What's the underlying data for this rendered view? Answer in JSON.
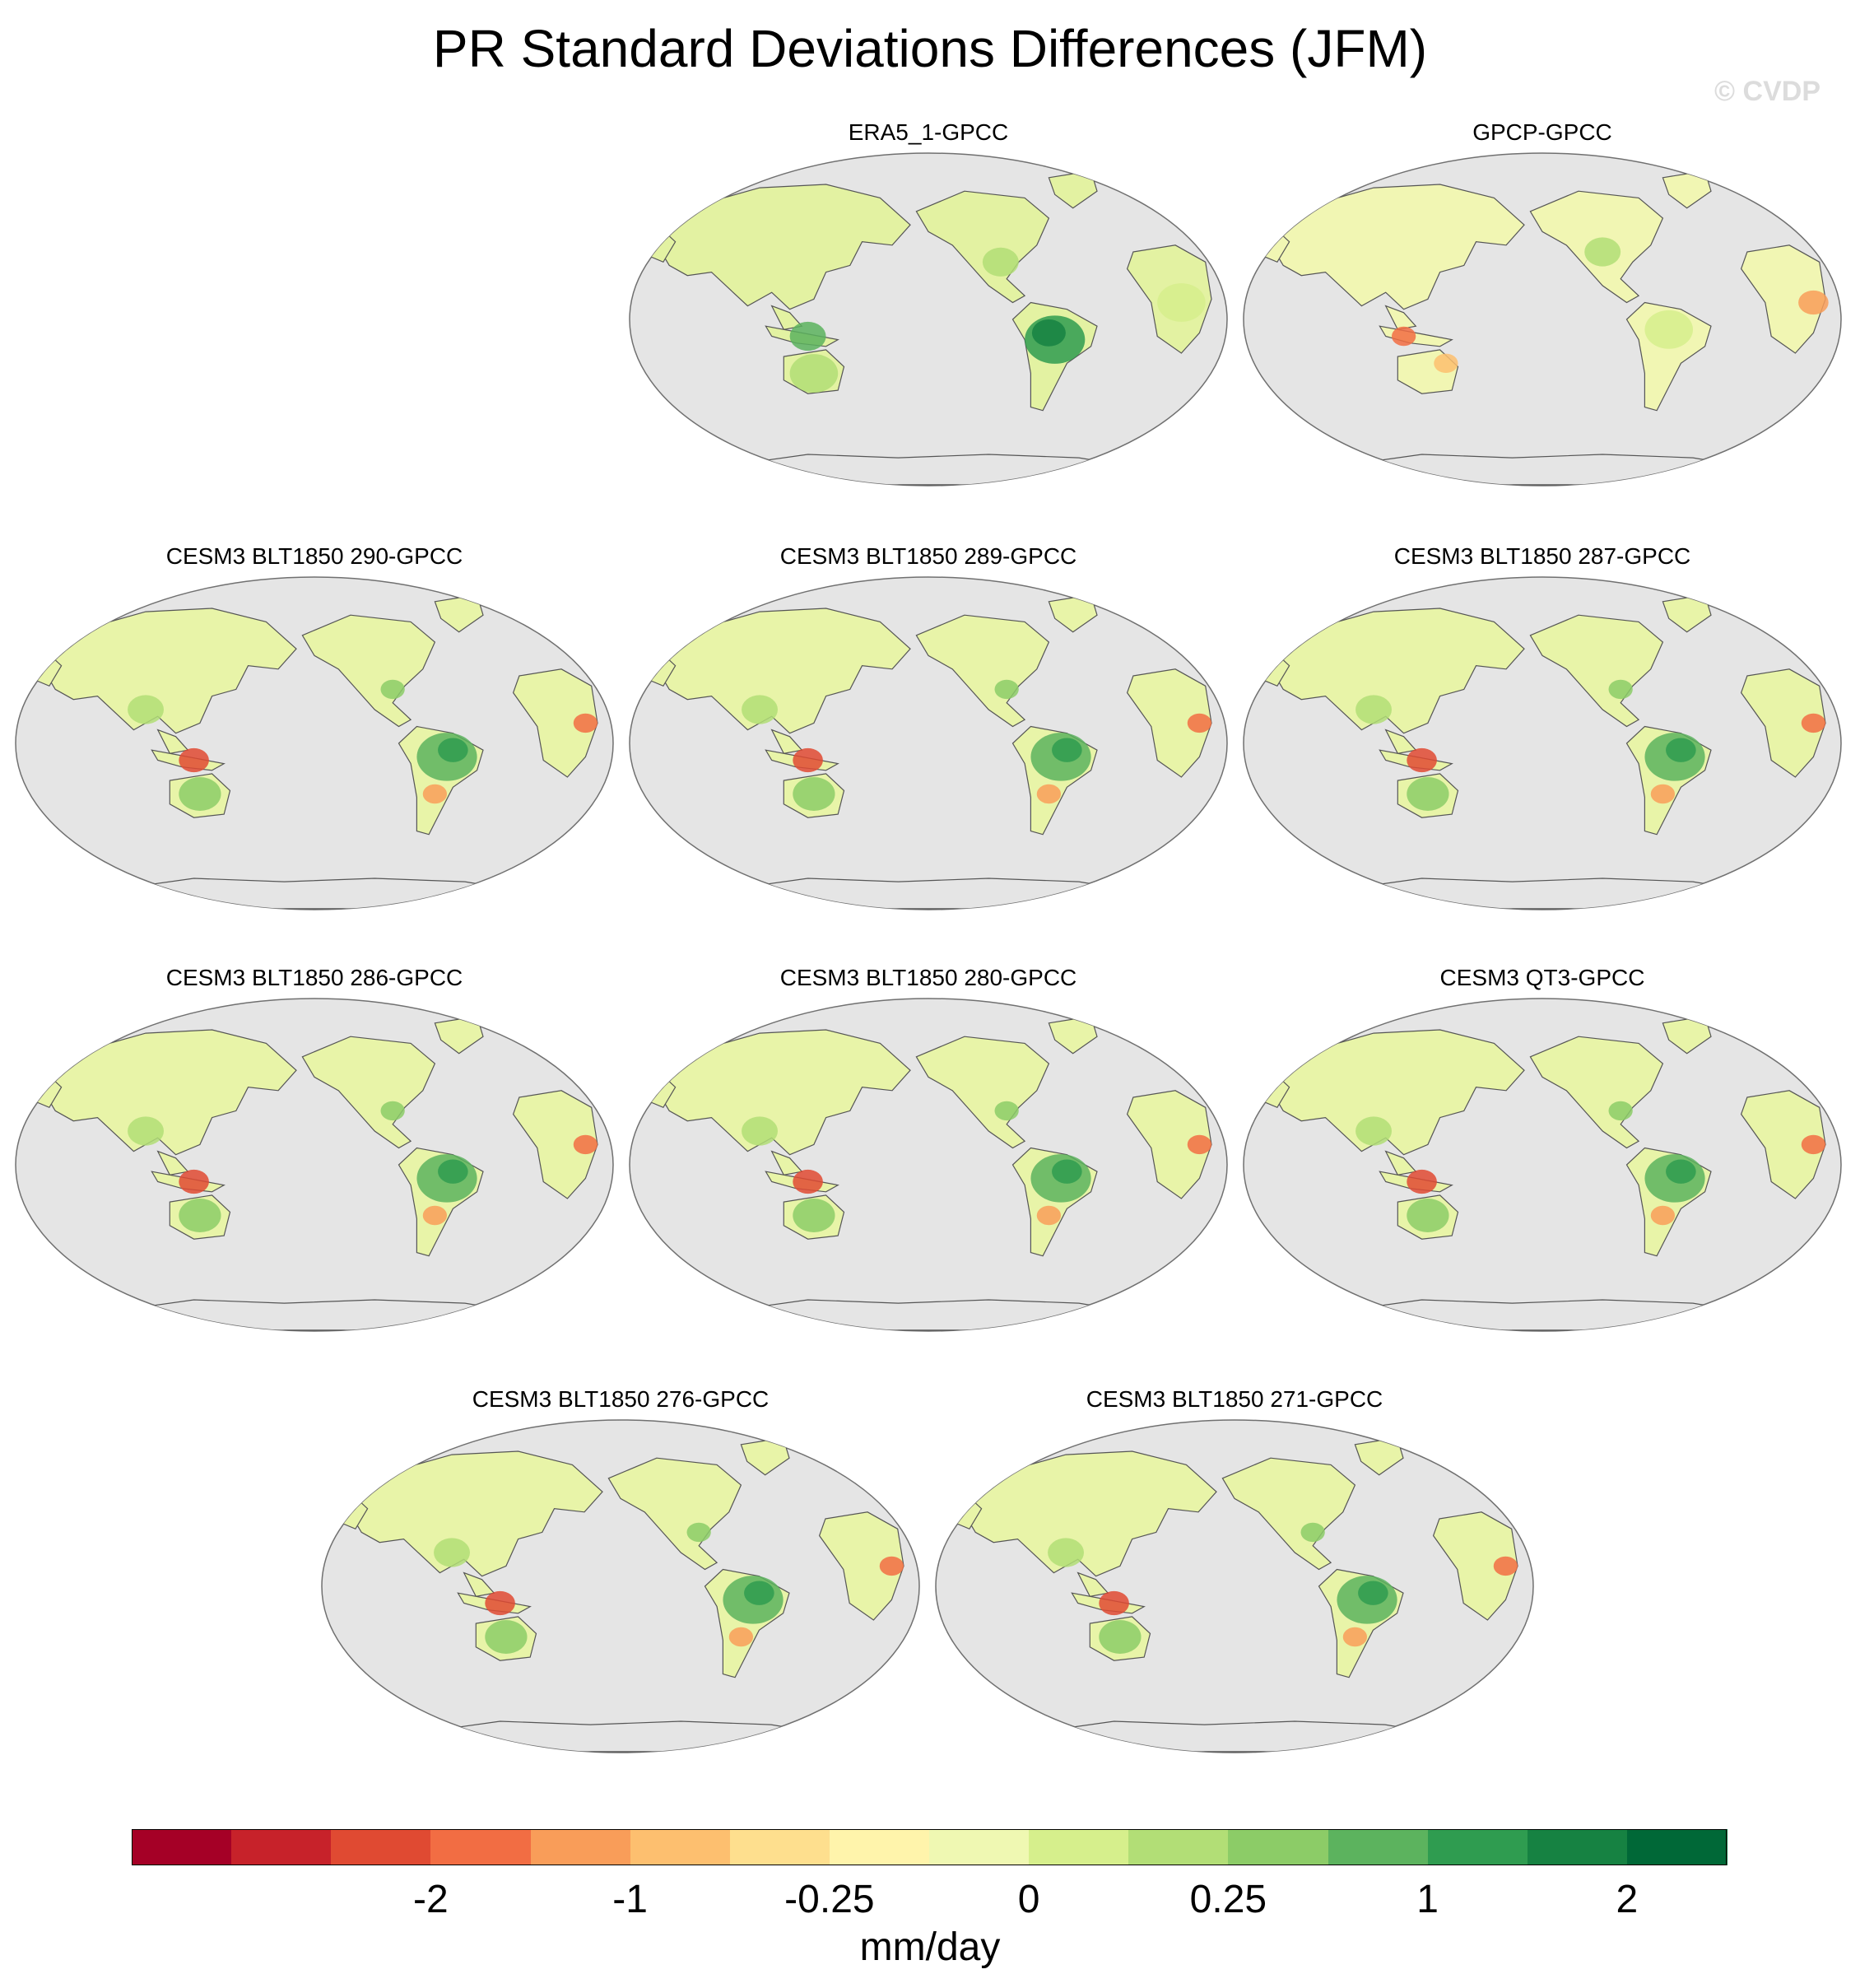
{
  "title": "PR Standard Deviations Differences (JFM)",
  "watermark": "© CVDP",
  "panels": [
    {
      "title": "ERA5_1-GPCC",
      "pattern": "era5"
    },
    {
      "title": "GPCP-GPCC",
      "pattern": "gpcp"
    },
    {
      "title": "CESM3 BLT1850 290-GPCC",
      "pattern": "cesm"
    },
    {
      "title": "CESM3 BLT1850 289-GPCC",
      "pattern": "cesm"
    },
    {
      "title": "CESM3 BLT1850 287-GPCC",
      "pattern": "cesm"
    },
    {
      "title": "CESM3 BLT1850 286-GPCC",
      "pattern": "cesm"
    },
    {
      "title": "CESM3 BLT1850 280-GPCC",
      "pattern": "cesm"
    },
    {
      "title": "CESM3 QT3-GPCC",
      "pattern": "cesm"
    },
    {
      "title": "CESM3 BLT1850 276-GPCC",
      "pattern": "cesm"
    },
    {
      "title": "CESM3 BLT1850 271-GPCC",
      "pattern": "cesm"
    }
  ],
  "colorbar": {
    "colors": [
      "#a50026",
      "#c7222a",
      "#e04a32",
      "#f26d43",
      "#f99d59",
      "#fdbf6f",
      "#fedf8e",
      "#fff4ab",
      "#eff8b2",
      "#d6ef8c",
      "#b2de76",
      "#8ccc67",
      "#5cb35e",
      "#2f9c50",
      "#168242",
      "#006837"
    ],
    "tick_labels": [
      "-2",
      "-1",
      "-0.25",
      "0",
      "0.25",
      "1",
      "2"
    ],
    "units": "mm/day"
  },
  "map": {
    "ocean_color": "#e5e5e5",
    "outline_color": "#707070"
  }
}
